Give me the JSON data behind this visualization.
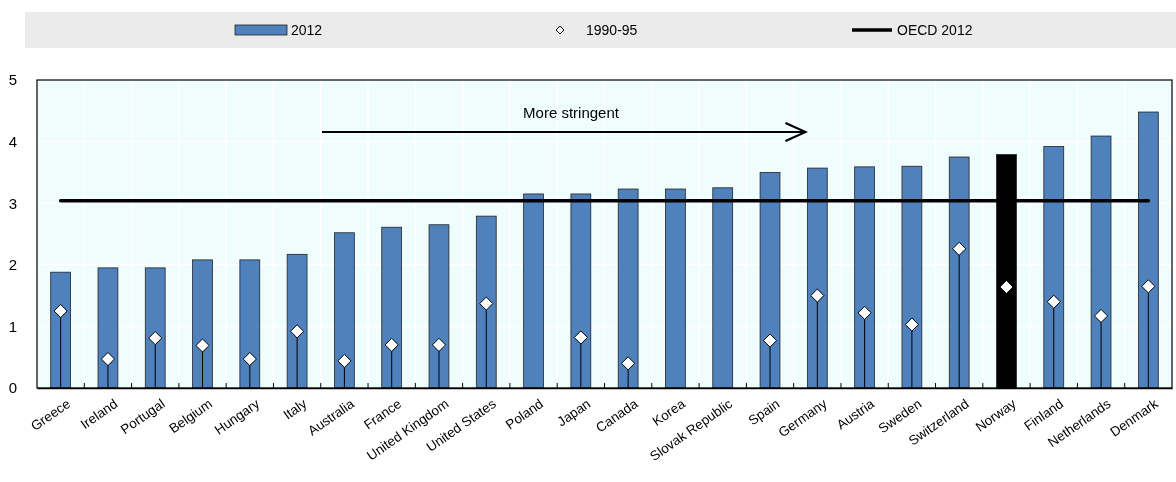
{
  "chart_data": {
    "type": "bar",
    "categories": [
      "Greece",
      "Ireland",
      "Portugal",
      "Belgium",
      "Hungary",
      "Italy",
      "Australia",
      "France",
      "United Kingdom",
      "United States",
      "Poland",
      "Japan",
      "Canada",
      "Korea",
      "Slovak Republic",
      "Spain",
      "Germany",
      "Austria",
      "Sweden",
      "Switzerland",
      "Norway",
      "Finland",
      "Netherlands",
      "Denmark"
    ],
    "series": [
      {
        "name": "2012",
        "color": "#4f81bd",
        "colors": [
          "#4f81bd",
          "#4f81bd",
          "#4f81bd",
          "#4f81bd",
          "#4f81bd",
          "#4f81bd",
          "#4f81bd",
          "#4f81bd",
          "#4f81bd",
          "#4f81bd",
          "#4f81bd",
          "#4f81bd",
          "#4f81bd",
          "#4f81bd",
          "#4f81bd",
          "#4f81bd",
          "#4f81bd",
          "#4f81bd",
          "#4f81bd",
          "#4f81bd",
          "#000000",
          "#4f81bd",
          "#4f81bd",
          "#4f81bd"
        ],
        "values": [
          1.88,
          1.95,
          1.95,
          2.08,
          2.08,
          2.17,
          2.52,
          2.61,
          2.65,
          2.79,
          3.15,
          3.15,
          3.23,
          3.23,
          3.25,
          3.5,
          3.57,
          3.59,
          3.6,
          3.75,
          3.79,
          3.92,
          4.09,
          4.48
        ]
      },
      {
        "name": "1990-95",
        "type": "lollipop",
        "marker": "diamond",
        "color": "#ffffff",
        "values": [
          1.25,
          0.47,
          0.81,
          0.69,
          0.47,
          0.92,
          0.44,
          0.7,
          0.7,
          1.37,
          null,
          0.82,
          0.4,
          null,
          null,
          0.77,
          1.5,
          1.22,
          1.03,
          2.26,
          1.64,
          1.4,
          1.17,
          1.65
        ]
      }
    ],
    "ref_lines": [
      {
        "axis": "y",
        "value": 3.04,
        "label": "OECD 2012",
        "color": "#000000"
      }
    ],
    "annotations": [
      "More stringent"
    ],
    "ylim": [
      0,
      5
    ],
    "yticks": [
      0,
      1,
      2,
      3,
      4,
      5
    ],
    "grid": true,
    "legend": "top"
  }
}
